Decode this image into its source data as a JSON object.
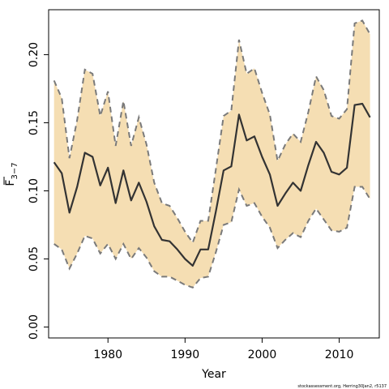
{
  "chart_data": {
    "type": "line",
    "xlabel": "Year",
    "ylabel": "F",
    "ylabel_subscript": "3−7",
    "credit": "stockassessment.org, Herring30Jan2, r5137",
    "xlim": [
      1972.3,
      2015.2
    ],
    "ylim": [
      -0.008,
      0.233
    ],
    "x_ticks": [
      1980,
      1990,
      2000,
      2010
    ],
    "x_tick_labels": [
      "1980",
      "1990",
      "2000",
      "2010"
    ],
    "y_ticks": [
      0.0,
      0.05,
      0.1,
      0.15,
      0.2
    ],
    "y_tick_labels": [
      "0.00",
      "0.05",
      "0.10",
      "0.15",
      "0.20"
    ],
    "colors": {
      "band": "#f5deb3",
      "line": "#333333",
      "bound": "#7a7a7a"
    },
    "x": [
      1973,
      1974,
      1975,
      1976,
      1977,
      1978,
      1979,
      1980,
      1981,
      1982,
      1983,
      1984,
      1985,
      1986,
      1987,
      1988,
      1989,
      1990,
      1991,
      1992,
      1993,
      1994,
      1995,
      1996,
      1997,
      1998,
      1999,
      2000,
      2001,
      2002,
      2003,
      2004,
      2005,
      2006,
      2007,
      2008,
      2009,
      2010,
      2011,
      2012,
      2013,
      2014
    ],
    "series": [
      {
        "role": "estimate",
        "values": [
          0.121,
          0.113,
          0.084,
          0.103,
          0.128,
          0.125,
          0.104,
          0.117,
          0.091,
          0.115,
          0.093,
          0.106,
          0.092,
          0.074,
          0.064,
          0.063,
          0.057,
          0.05,
          0.045,
          0.057,
          0.057,
          0.085,
          0.115,
          0.118,
          0.156,
          0.137,
          0.14,
          0.125,
          0.112,
          0.089,
          0.098,
          0.106,
          0.1,
          0.119,
          0.136,
          0.128,
          0.114,
          0.112,
          0.117,
          0.163,
          0.164,
          0.154
        ]
      },
      {
        "role": "upper",
        "values": [
          0.181,
          0.168,
          0.124,
          0.152,
          0.189,
          0.186,
          0.155,
          0.173,
          0.133,
          0.166,
          0.133,
          0.154,
          0.134,
          0.106,
          0.091,
          0.089,
          0.08,
          0.07,
          0.062,
          0.078,
          0.078,
          0.116,
          0.155,
          0.159,
          0.211,
          0.186,
          0.19,
          0.172,
          0.156,
          0.122,
          0.134,
          0.142,
          0.136,
          0.158,
          0.184,
          0.174,
          0.155,
          0.153,
          0.16,
          0.223,
          0.225,
          0.215
        ]
      },
      {
        "role": "lower",
        "values": [
          0.061,
          0.057,
          0.043,
          0.054,
          0.067,
          0.065,
          0.054,
          0.061,
          0.05,
          0.061,
          0.05,
          0.058,
          0.051,
          0.041,
          0.037,
          0.037,
          0.034,
          0.031,
          0.029,
          0.036,
          0.037,
          0.055,
          0.075,
          0.077,
          0.101,
          0.089,
          0.091,
          0.081,
          0.073,
          0.058,
          0.064,
          0.069,
          0.066,
          0.078,
          0.087,
          0.079,
          0.071,
          0.07,
          0.073,
          0.103,
          0.103,
          0.094
        ]
      }
    ]
  }
}
